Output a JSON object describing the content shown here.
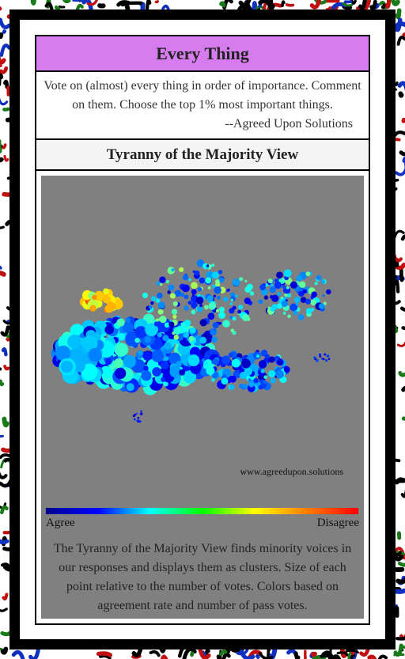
{
  "header": {
    "title": "Every Thing",
    "description": "Vote on (almost) every thing in order of importance. Comment on them. Choose the top 1% most important things.",
    "attribution": "--Agreed Upon Solutions"
  },
  "view": {
    "title": "Tyranny of the Majority View",
    "watermark": "www.agreedupon.solutions",
    "legend": {
      "low_label": "Agree",
      "high_label": "Disagree"
    },
    "caption": "The Tyranny of the Majority View finds minority voices in our responses and displays them as clusters. Size of each point relative to the number of votes. Colors based on agreement rate and number of pass votes."
  }
}
